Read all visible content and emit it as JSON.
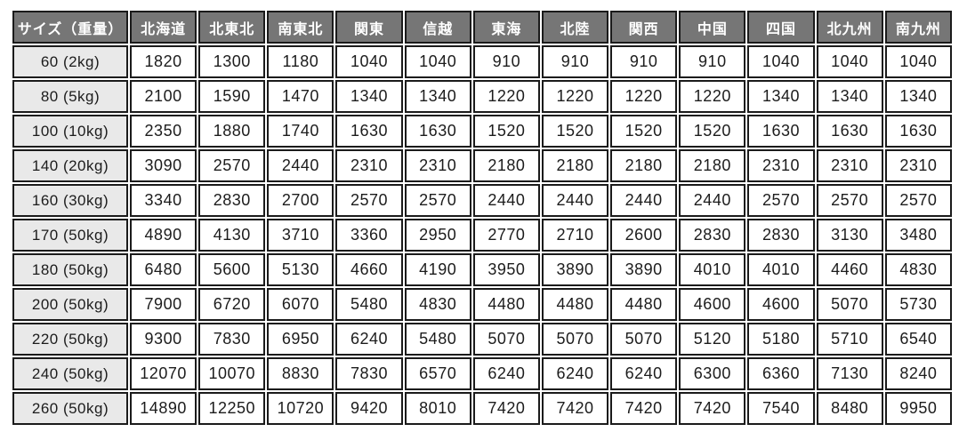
{
  "colors": {
    "header_bg": "#767676",
    "header_text": "#ffffff",
    "row_label_bg": "#e9e9e9",
    "cell_bg": "#ffffff",
    "border": "#1b1b1b",
    "text": "#1c1c1c"
  },
  "chart_data": {
    "type": "table",
    "corner_header": "サイズ（重量）",
    "columns": [
      "北海道",
      "北東北",
      "南東北",
      "関東",
      "信越",
      "東海",
      "北陸",
      "関西",
      "中国",
      "四国",
      "北九州",
      "南九州"
    ],
    "rows": [
      {
        "label": "60 (2kg)",
        "values": [
          1820,
          1300,
          1180,
          1040,
          1040,
          910,
          910,
          910,
          910,
          1040,
          1040,
          1040
        ]
      },
      {
        "label": "80 (5kg)",
        "values": [
          2100,
          1590,
          1470,
          1340,
          1340,
          1220,
          1220,
          1220,
          1220,
          1340,
          1340,
          1340
        ]
      },
      {
        "label": "100 (10kg)",
        "values": [
          2350,
          1880,
          1740,
          1630,
          1630,
          1520,
          1520,
          1520,
          1520,
          1630,
          1630,
          1630
        ]
      },
      {
        "label": "140 (20kg)",
        "values": [
          3090,
          2570,
          2440,
          2310,
          2310,
          2180,
          2180,
          2180,
          2180,
          2310,
          2310,
          2310
        ]
      },
      {
        "label": "160 (30kg)",
        "values": [
          3340,
          2830,
          2700,
          2570,
          2570,
          2440,
          2440,
          2440,
          2440,
          2570,
          2570,
          2570
        ]
      },
      {
        "label": "170 (50kg)",
        "values": [
          4890,
          4130,
          3710,
          3360,
          2950,
          2770,
          2710,
          2600,
          2830,
          2830,
          3130,
          3480
        ]
      },
      {
        "label": "180 (50kg)",
        "values": [
          6480,
          5600,
          5130,
          4660,
          4190,
          3950,
          3890,
          3890,
          4010,
          4010,
          4460,
          4830
        ]
      },
      {
        "label": "200 (50kg)",
        "values": [
          7900,
          6720,
          6070,
          5480,
          4830,
          4480,
          4480,
          4480,
          4600,
          4600,
          5070,
          5730
        ]
      },
      {
        "label": "220 (50kg)",
        "values": [
          9300,
          7830,
          6950,
          6240,
          5480,
          5070,
          5070,
          5070,
          5120,
          5180,
          5710,
          6540
        ]
      },
      {
        "label": "240 (50kg)",
        "values": [
          12070,
          10070,
          8830,
          7830,
          6570,
          6240,
          6240,
          6240,
          6300,
          6360,
          7130,
          8240
        ]
      },
      {
        "label": "260 (50kg)",
        "values": [
          14890,
          12250,
          10720,
          9420,
          8010,
          7420,
          7420,
          7420,
          7420,
          7540,
          8480,
          9950
        ]
      }
    ]
  }
}
